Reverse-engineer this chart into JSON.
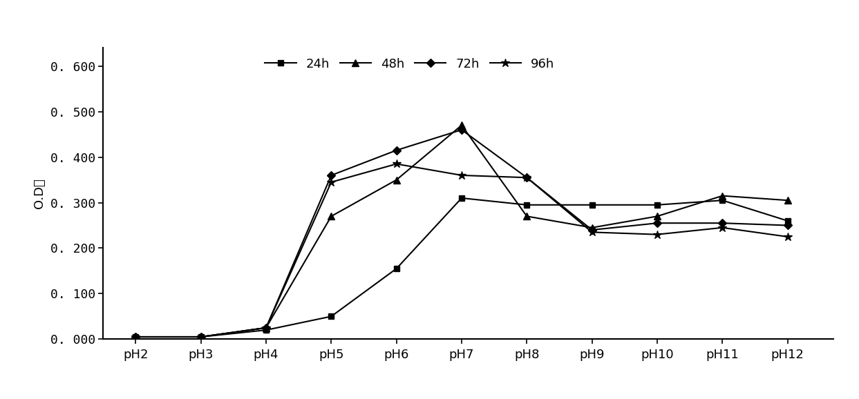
{
  "x_labels": [
    "pH2",
    "pH3",
    "pH4",
    "pH5",
    "pH6",
    "pH7",
    "pH8",
    "pH9",
    "pH10",
    "pH11",
    "pH12"
  ],
  "x_values": [
    2,
    3,
    4,
    5,
    6,
    7,
    8,
    9,
    10,
    11,
    12
  ],
  "series": {
    "24h": {
      "values": [
        0.005,
        0.005,
        0.02,
        0.05,
        0.155,
        0.31,
        0.295,
        0.295,
        0.295,
        0.305,
        0.26
      ],
      "marker": "s",
      "color": "#000000",
      "linewidth": 1.5,
      "markersize": 6,
      "label": "24h"
    },
    "48h": {
      "values": [
        0.005,
        0.005,
        0.025,
        0.27,
        0.35,
        0.47,
        0.27,
        0.245,
        0.27,
        0.315,
        0.305
      ],
      "marker": "^",
      "color": "#000000",
      "linewidth": 1.5,
      "markersize": 7,
      "label": "48h"
    },
    "72h": {
      "values": [
        0.005,
        0.005,
        0.025,
        0.36,
        0.415,
        0.46,
        0.355,
        0.24,
        0.255,
        0.255,
        0.25
      ],
      "marker": "D",
      "color": "#000000",
      "linewidth": 1.5,
      "markersize": 6,
      "label": "72h"
    },
    "96h": {
      "values": [
        0.005,
        0.005,
        0.025,
        0.345,
        0.385,
        0.36,
        0.355,
        0.235,
        0.23,
        0.245,
        0.225
      ],
      "marker": "*",
      "color": "#000000",
      "linewidth": 1.5,
      "markersize": 9,
      "label": "96h"
    }
  },
  "ylabel": "O.D值",
  "ylim": [
    0.0,
    0.64
  ],
  "yticks": [
    0.0,
    0.1,
    0.2,
    0.3,
    0.4,
    0.5,
    0.6
  ],
  "ytick_labels": [
    "0. 000",
    "0. 100",
    "0. 200",
    "0. 300",
    "0. 400",
    "0. 500",
    "0. 600"
  ],
  "legend_loc": "upper center",
  "legend_ncol": 4,
  "background_color": "#ffffff",
  "figsize": [
    12.43,
    5.78
  ],
  "dpi": 100
}
